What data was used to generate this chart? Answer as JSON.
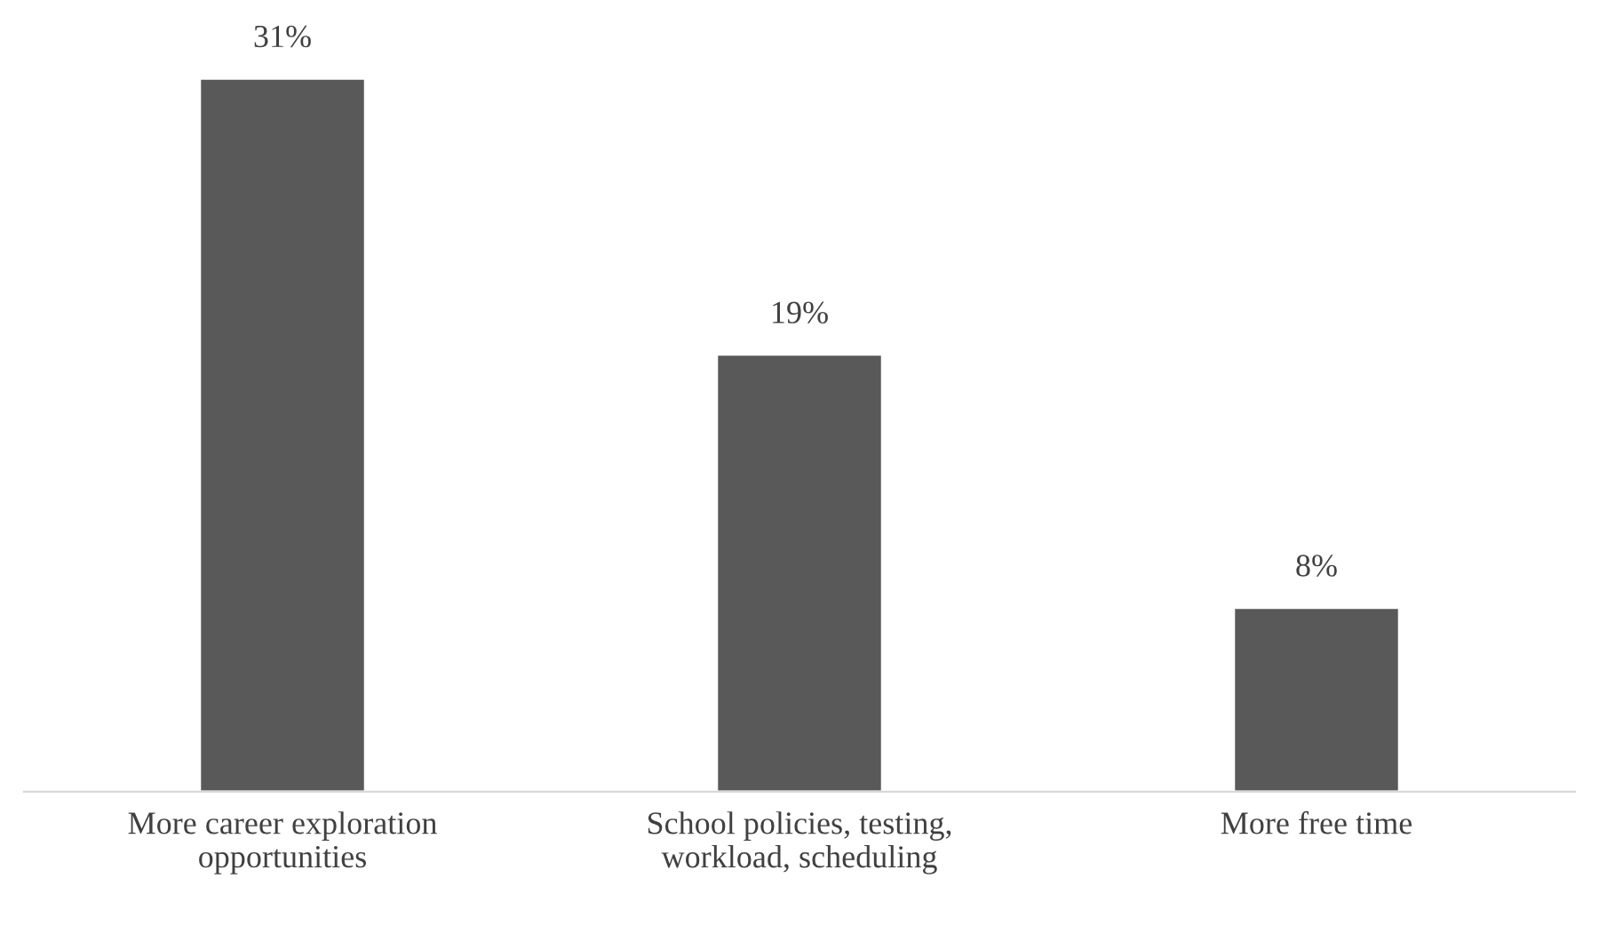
{
  "chart_data": {
    "type": "bar",
    "categories": [
      "More career exploration opportunities",
      "School policies, testing, workload, scheduling",
      "More free time"
    ],
    "values": [
      31,
      19,
      8
    ],
    "value_labels": [
      "31%",
      "19%",
      "8%"
    ],
    "color": "#595959",
    "grid": false,
    "legend": false,
    "tick_labels": "x"
  }
}
